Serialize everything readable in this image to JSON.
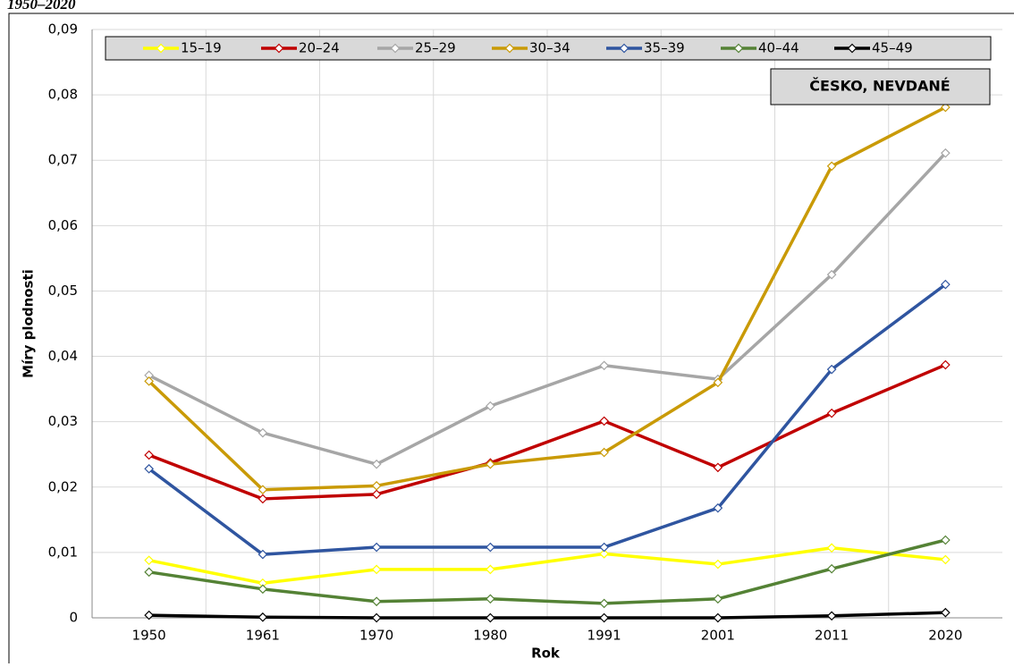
{
  "chart_data": {
    "type": "line",
    "title": "1950–2020",
    "xlabel": "Rok",
    "ylabel": "Míry plodnosti",
    "annotation": "ČESKO, NEVDANÉ",
    "categories": [
      "1950",
      "1961",
      "1970",
      "1980",
      "1991",
      "2001",
      "2011",
      "2020"
    ],
    "ylim": [
      0,
      0.09
    ],
    "yticks": [
      0,
      {
        "value": 0.01,
        "label": "0,01"
      },
      {
        "value": 0.02,
        "label": "0,02"
      },
      {
        "value": 0.03,
        "label": "0,03"
      },
      {
        "value": 0.04,
        "label": "0,04"
      },
      {
        "value": 0.05,
        "label": "0,05"
      },
      {
        "value": 0.06,
        "label": "0,06"
      },
      {
        "value": 0.07,
        "label": "0,07"
      },
      {
        "value": 0.08,
        "label": "0,08"
      },
      {
        "value": 0.09,
        "label": "0,09"
      }
    ],
    "grid": true,
    "legend": "top",
    "series": [
      {
        "name": "15–19",
        "color": "#ffff00",
        "values": [
          0.0088,
          0.0053,
          0.0074,
          0.0074,
          0.0098,
          0.0082,
          0.0107,
          0.0089
        ]
      },
      {
        "name": "20–24",
        "color": "#c00000",
        "values": [
          0.0249,
          0.0182,
          0.0189,
          0.0237,
          0.0301,
          0.023,
          0.0313,
          0.0387
        ]
      },
      {
        "name": "25–29",
        "color": "#a6a6a6",
        "values": [
          0.0371,
          0.0283,
          0.0235,
          0.0324,
          0.0386,
          0.0365,
          0.0525,
          0.0711
        ]
      },
      {
        "name": "30–34",
        "color": "#c99a06",
        "values": [
          0.0362,
          0.0196,
          0.0202,
          0.0235,
          0.0253,
          0.036,
          0.0691,
          0.0781
        ]
      },
      {
        "name": "35–39",
        "color": "#2f55a0",
        "values": [
          0.0228,
          0.0097,
          0.0108,
          0.0108,
          0.0108,
          0.0168,
          0.038,
          0.051
        ]
      },
      {
        "name": "40–44",
        "color": "#548235",
        "values": [
          0.007,
          0.0044,
          0.0025,
          0.0029,
          0.0022,
          0.0029,
          0.0075,
          0.0119
        ]
      },
      {
        "name": "45–49",
        "color": "#000000",
        "values": [
          0.0004,
          0.0001,
          0,
          0,
          0,
          0,
          0.0003,
          0.0008
        ]
      }
    ]
  }
}
